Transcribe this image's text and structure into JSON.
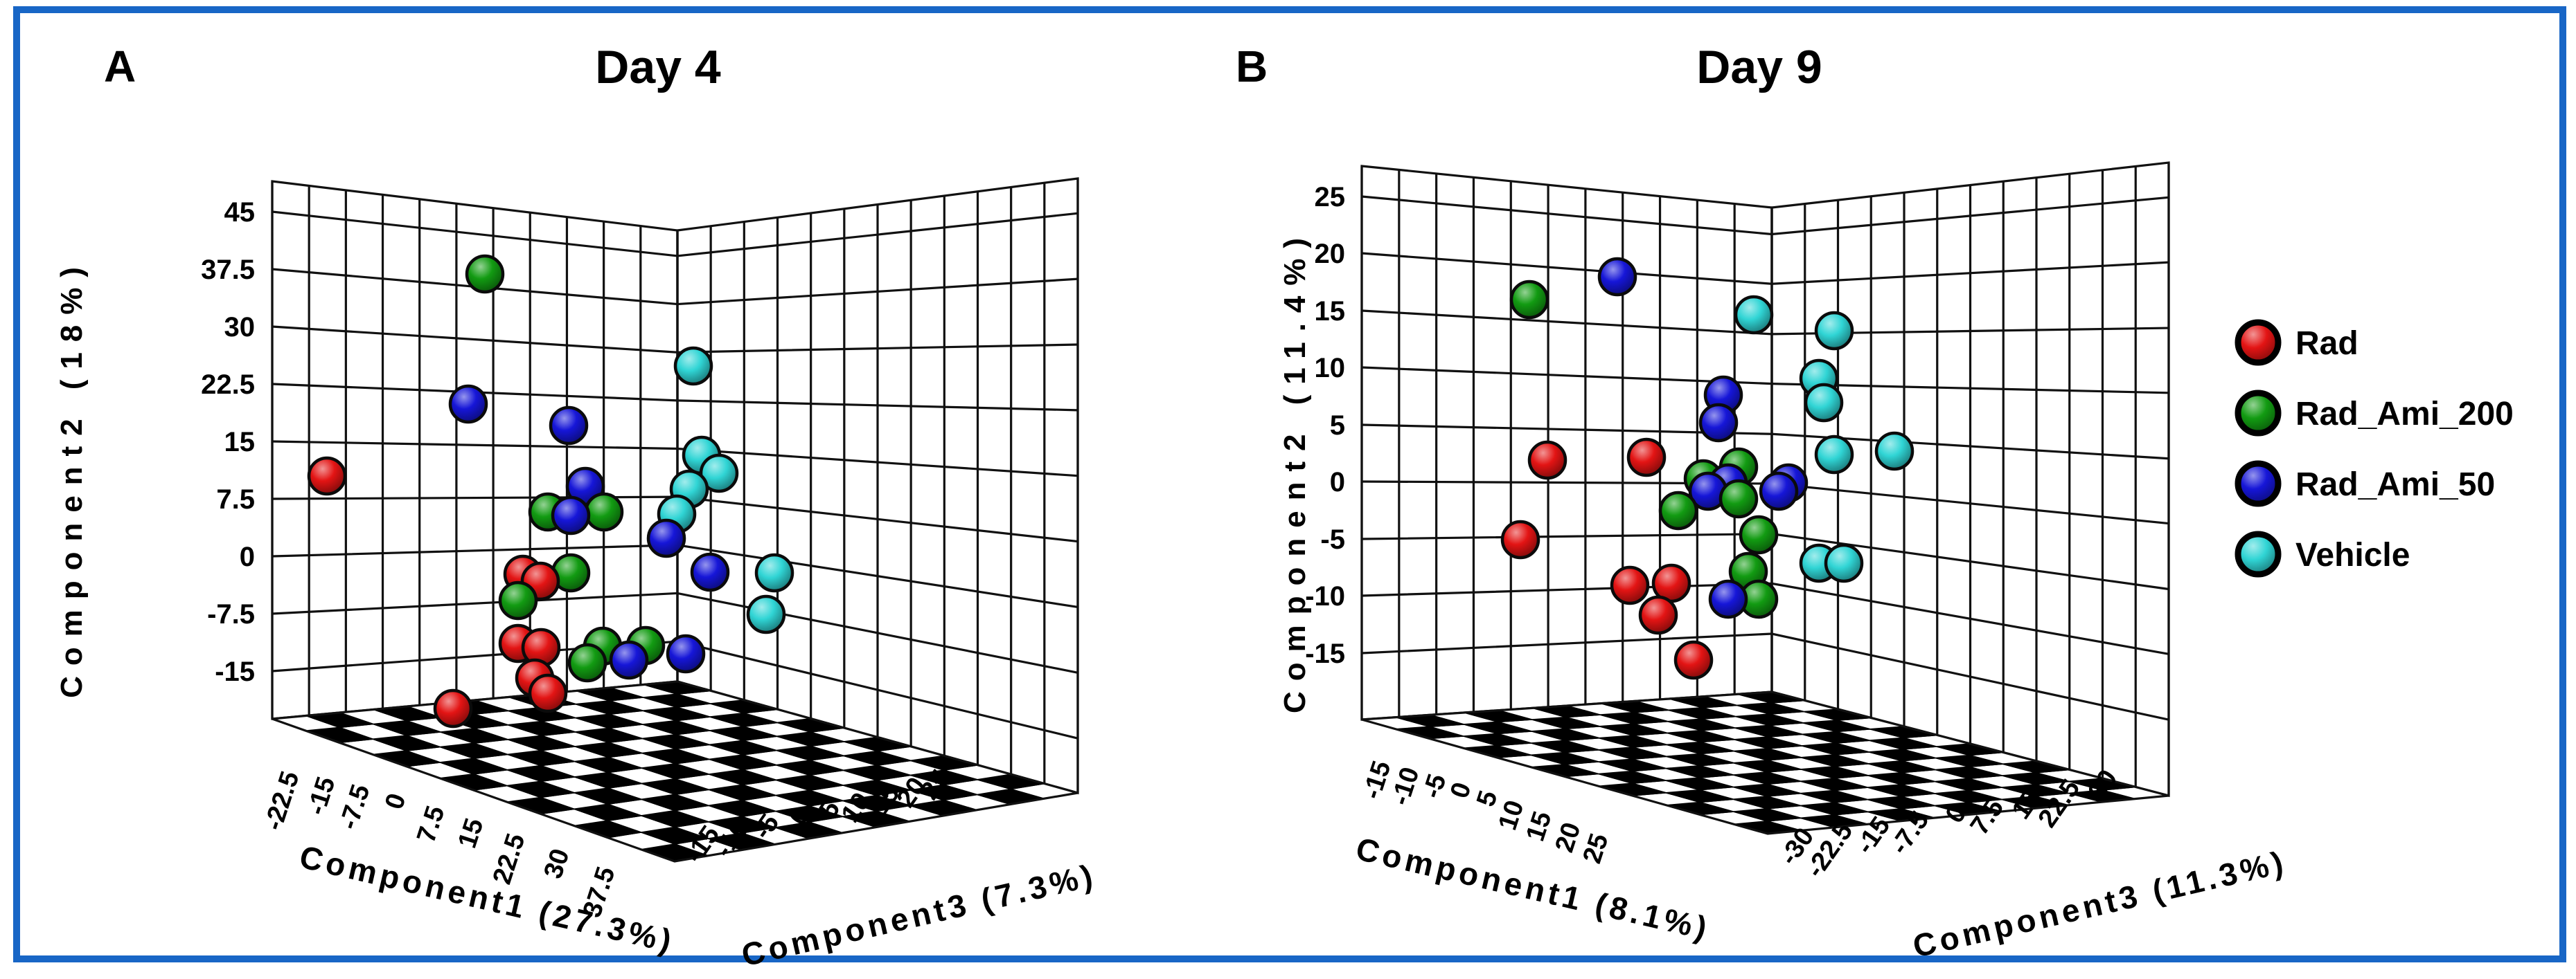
{
  "figure": {
    "border_color": "#1866c6",
    "background": "#ffffff"
  },
  "colors": {
    "rad": "#e31414",
    "rad_ami_200": "#129b12",
    "rad_ami_50": "#1616d8",
    "vehicle": "#30d5d5"
  },
  "legend": {
    "items": [
      {
        "label": "Rad",
        "color_key": "rad"
      },
      {
        "label": "Rad_Ami_200",
        "color_key": "rad_ami_200"
      },
      {
        "label": "Rad_Ami_50",
        "color_key": "rad_ami_50"
      },
      {
        "label": "Vehicle",
        "color_key": "vehicle"
      }
    ]
  },
  "chart_data": [
    {
      "type": "scatter",
      "projection": "3d",
      "panel_label": "A",
      "title": "Day 4",
      "axes": {
        "c1": {
          "title": "Component1 (27.3%)",
          "ticks": [
            "-22.5",
            "-15",
            "-7.5",
            "0",
            "7.5",
            "15",
            "22.5",
            "30",
            "37.5"
          ]
        },
        "c2": {
          "title": "Component2 (18%)",
          "ticks": [
            "45",
            "37.5",
            "30",
            "22.5",
            "15",
            "7.5",
            "0",
            "-7.5",
            "-15"
          ]
        },
        "c3": {
          "title": "Component3 (7.3%)",
          "ticks": [
            "-15",
            "-10",
            "-5",
            "0",
            "5",
            "10",
            "15",
            "20",
            "25"
          ]
        }
      },
      "series": [
        {
          "name": "Rad",
          "color_key": "rad",
          "points": [
            [
              472,
              688
            ],
            [
              755,
              830
            ],
            [
              780,
              840
            ],
            [
              748,
              930
            ],
            [
              781,
              936
            ],
            [
              772,
              980
            ],
            [
              791,
              1002
            ],
            [
              654,
              1024
            ]
          ]
        },
        {
          "name": "Rad_Ami_200",
          "color_key": "rad_ami_200",
          "points": [
            [
              700,
              396
            ],
            [
              791,
              740
            ],
            [
              872,
              740
            ],
            [
              824,
              828
            ],
            [
              748,
              868
            ],
            [
              870,
              934
            ],
            [
              848,
              958
            ],
            [
              932,
              933
            ]
          ]
        },
        {
          "name": "Rad_Ami_50",
          "color_key": "rad_ami_50",
          "points": [
            [
              676,
              584
            ],
            [
              821,
              615
            ],
            [
              845,
              703
            ],
            [
              824,
              745
            ],
            [
              962,
              778
            ],
            [
              1025,
              827
            ],
            [
              908,
              954
            ],
            [
              990,
              945
            ]
          ]
        },
        {
          "name": "Vehicle",
          "color_key": "vehicle",
          "points": [
            [
              1001,
              529
            ],
            [
              1013,
              658
            ],
            [
              1038,
              684
            ],
            [
              995,
              707
            ],
            [
              977,
              743
            ],
            [
              1118,
              828
            ],
            [
              1106,
              888
            ]
          ]
        }
      ]
    },
    {
      "type": "scatter",
      "projection": "3d",
      "panel_label": "B",
      "title": "Day 9",
      "axes": {
        "c1": {
          "title": "Component1 (8.1%)",
          "ticks": [
            "-15",
            "-10",
            "-5",
            "0",
            "5",
            "10",
            "15",
            "20",
            "25"
          ]
        },
        "c2": {
          "title": "Component2 (11.4%)",
          "ticks": [
            "25",
            "20",
            "15",
            "10",
            "5",
            "0",
            "-5",
            "-10",
            "-15"
          ]
        },
        "c3": {
          "title": "Component3 (11.3%)",
          "ticks": [
            "-30",
            "-22.5",
            "-15",
            "-7.5",
            "0",
            "7.5",
            "15",
            "22.5",
            "30"
          ]
        }
      },
      "series": [
        {
          "name": "Rad",
          "color_key": "rad",
          "points": [
            [
              2234,
              665
            ],
            [
              2377,
              661
            ],
            [
              2195,
              780
            ],
            [
              2353,
              846
            ],
            [
              2413,
              843
            ],
            [
              2394,
              889
            ],
            [
              2445,
              954
            ]
          ]
        },
        {
          "name": "Rad_Ami_200",
          "color_key": "rad_ami_200",
          "points": [
            [
              2208,
              433
            ],
            [
              2510,
              675
            ],
            [
              2459,
              692
            ],
            [
              2510,
              721
            ],
            [
              2423,
              738
            ],
            [
              2539,
              773
            ],
            [
              2524,
              826
            ],
            [
              2539,
              866
            ]
          ]
        },
        {
          "name": "Rad_Ami_50",
          "color_key": "rad_ami_50",
          "points": [
            [
              2335,
              400
            ],
            [
              2488,
              571
            ],
            [
              2481,
              611
            ],
            [
              2466,
              710
            ],
            [
              2495,
              698
            ],
            [
              2568,
              710
            ],
            [
              2582,
              698
            ],
            [
              2495,
              866
            ]
          ]
        },
        {
          "name": "Vehicle",
          "color_key": "vehicle",
          "points": [
            [
              2532,
              455
            ],
            [
              2648,
              478
            ],
            [
              2626,
              547
            ],
            [
              2633,
              582
            ],
            [
              2648,
              657
            ],
            [
              2735,
              652
            ],
            [
              2626,
              814
            ],
            [
              2662,
              814
            ]
          ]
        }
      ]
    }
  ]
}
